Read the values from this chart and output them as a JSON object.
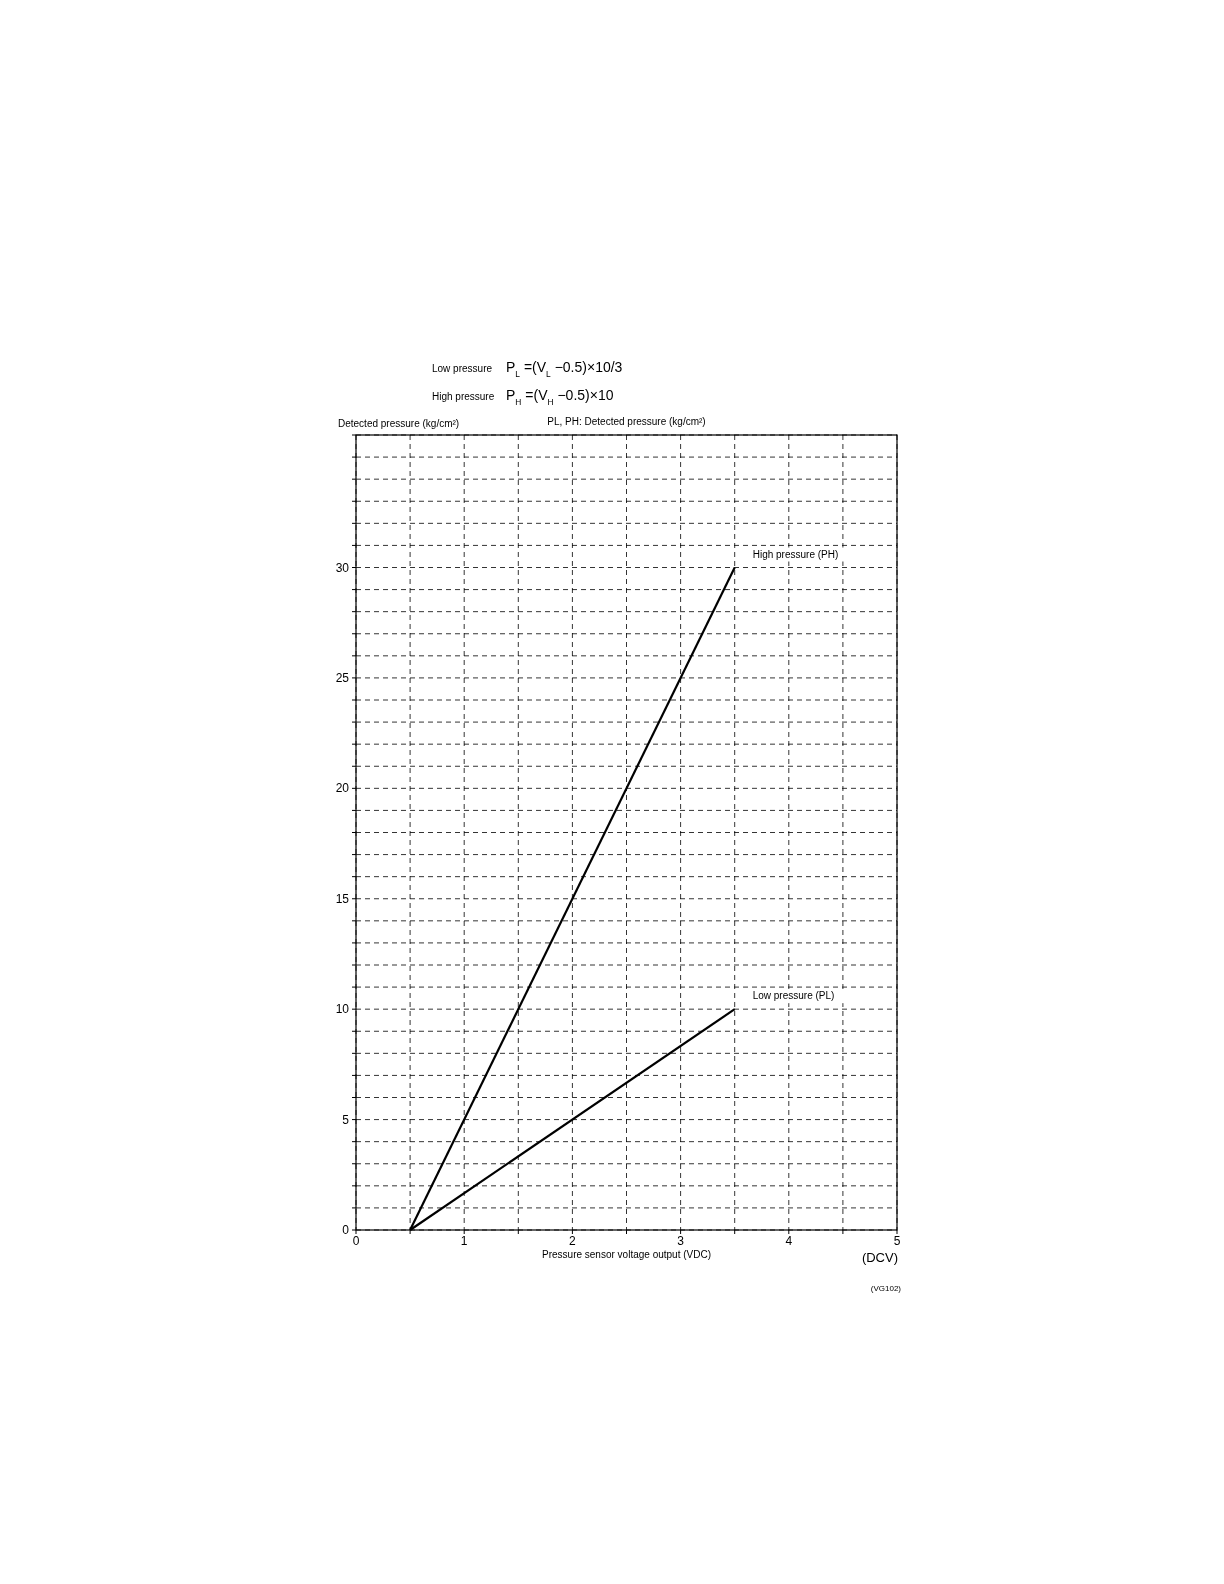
{
  "chart_data": {
    "type": "line",
    "title": "PL, PH: Detected pressure (kg/cm²)",
    "xlabel": "Pressure sensor voltage output (VDC)",
    "ylabel": "Detected pressure (kg/cm²)",
    "annotations": [
      "Low pressure",
      "P$_{L}$ =(V$_{L}$ −0.5)×10/3",
      "High pressure",
      "P$_{H}$ =(V$_{H}$ −0.5)×10",
      "(DCV)",
      "(VG102)"
    ],
    "series": [
      {
        "name": "High pressure (PH)",
        "color": "#000000",
        "values": [
          0,
          30
        ]
      },
      {
        "name": "Low pressure (PL)",
        "color": "#000000",
        "values": [
          0,
          10
        ]
      }
    ],
    "x": [
      0.5,
      3.5
    ],
    "xlim": [
      0,
      5
    ],
    "xticks": [
      0,
      {
        "value": 0.5,
        "label": null
      },
      1,
      {
        "value": 1.5,
        "label": null
      },
      2,
      {
        "value": 2.5,
        "label": null
      },
      3,
      {
        "value": 3.5,
        "label": null
      },
      4,
      {
        "value": 4.5,
        "label": null
      },
      5
    ],
    "ylim": [
      0,
      36
    ],
    "yticks": [
      0,
      {
        "value": 1,
        "label": null
      },
      {
        "value": 2,
        "label": null
      },
      {
        "value": 3,
        "label": null
      },
      {
        "value": 4,
        "label": null
      },
      5,
      {
        "value": 6,
        "label": null
      },
      {
        "value": 7,
        "label": null
      },
      {
        "value": 8,
        "label": null
      },
      {
        "value": 9,
        "label": null
      },
      10,
      {
        "value": 11,
        "label": null
      },
      {
        "value": 12,
        "label": null
      },
      {
        "value": 13,
        "label": null
      },
      {
        "value": 14,
        "label": null
      },
      15,
      {
        "value": 16,
        "label": null
      },
      {
        "value": 17,
        "label": null
      },
      {
        "value": 18,
        "label": null
      },
      {
        "value": 19,
        "label": null
      },
      20,
      {
        "value": 21,
        "label": null
      },
      {
        "value": 22,
        "label": null
      },
      {
        "value": 23,
        "label": null
      },
      {
        "value": 24,
        "label": null
      },
      25,
      {
        "value": 26,
        "label": null
      },
      {
        "value": 27,
        "label": null
      },
      {
        "value": 28,
        "label": null
      },
      {
        "value": 29,
        "label": null
      },
      30,
      {
        "value": 31,
        "label": null
      },
      {
        "value": 32,
        "label": null
      },
      {
        "value": 33,
        "label": null
      },
      {
        "value": 34,
        "label": null
      },
      {
        "value": 35,
        "label": null
      },
      {
        "value": 36,
        "label": null
      }
    ],
    "grid": true,
    "line_style": "solid",
    "marker": "none"
  }
}
